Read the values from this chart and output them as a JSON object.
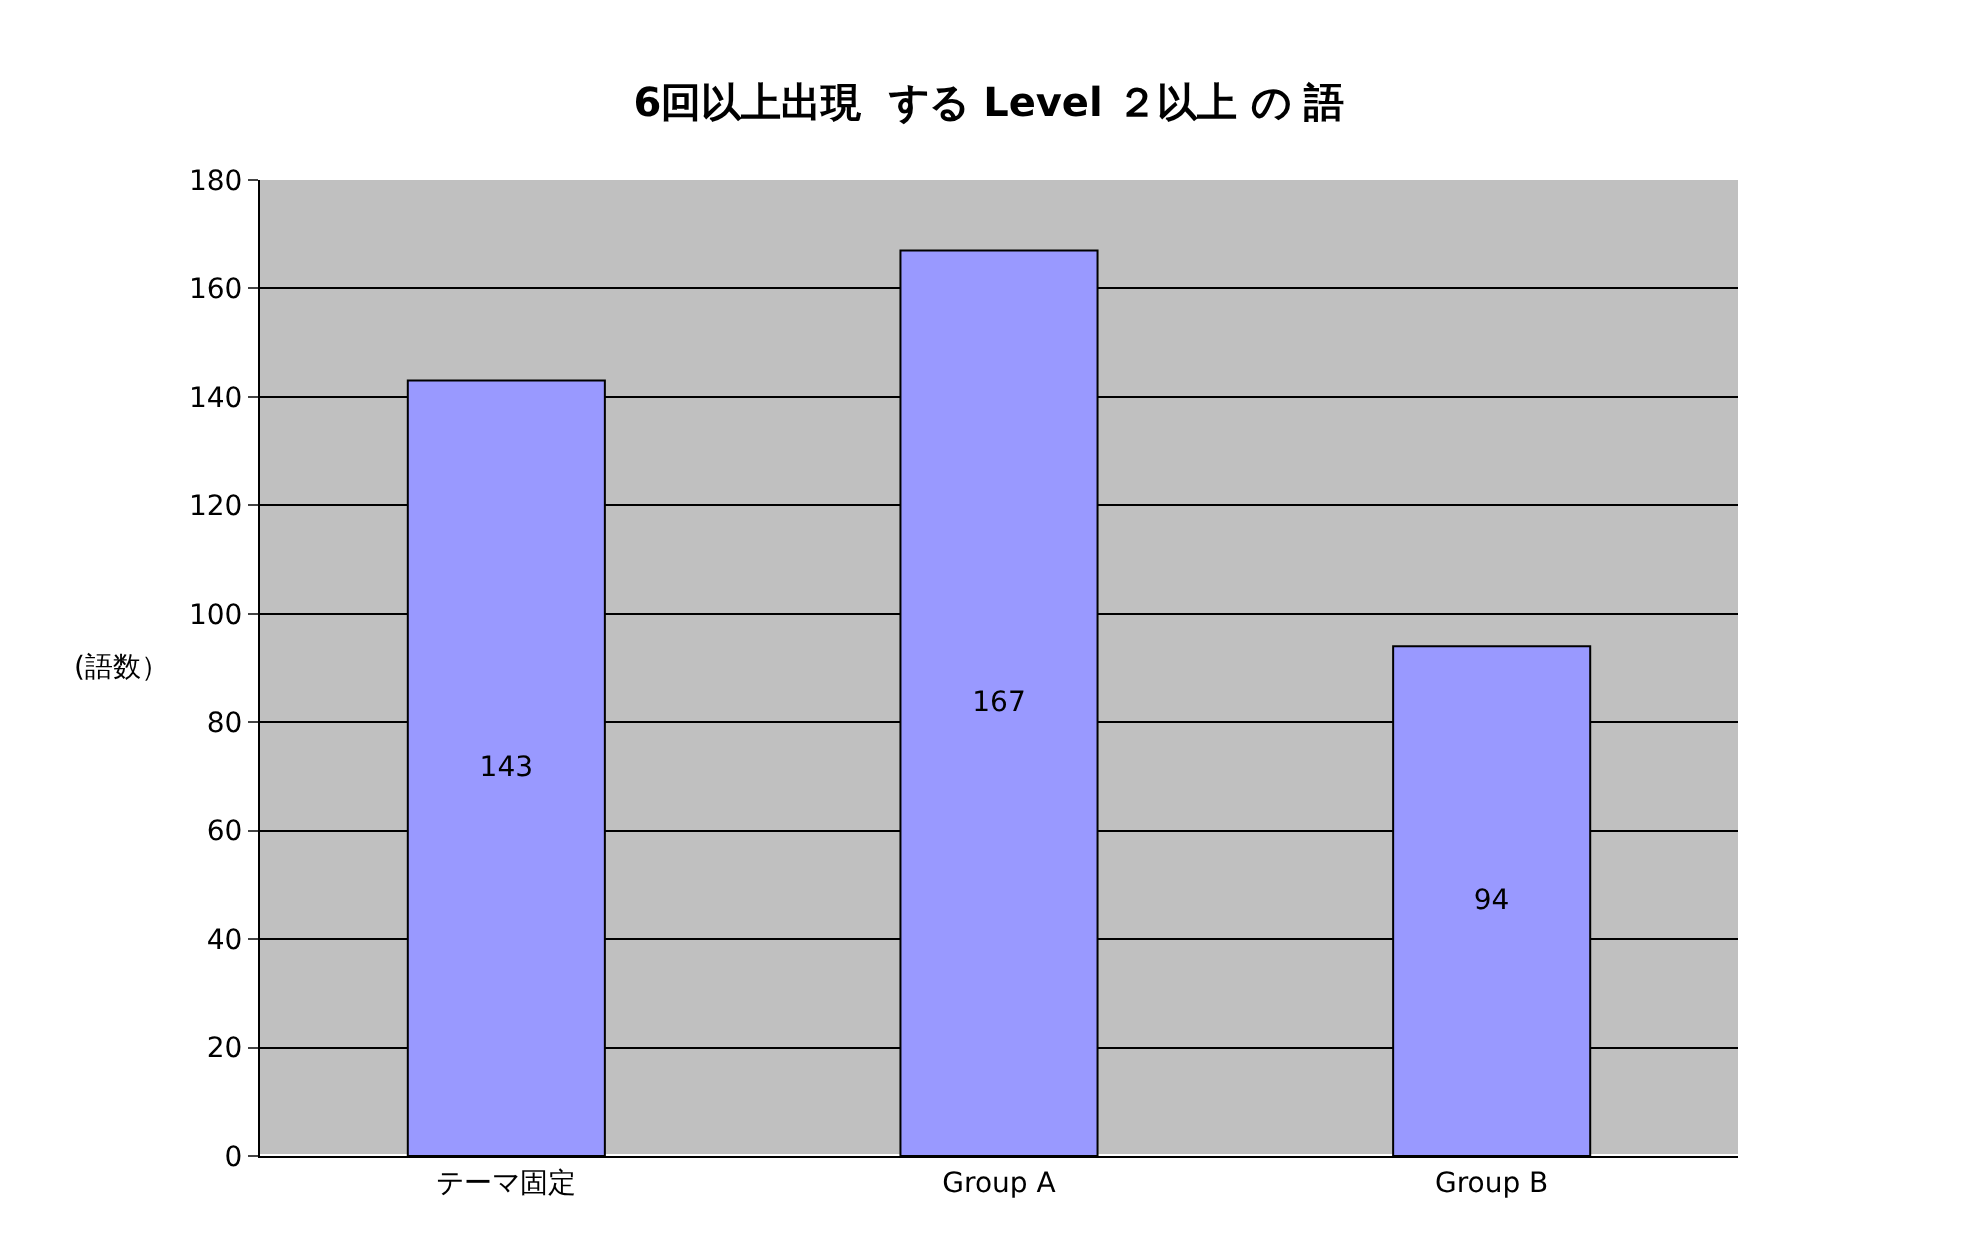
{
  "chart_data": {
    "type": "bar",
    "title": "6回以上出現  する Level ２以上 の 語",
    "ylabel": "(語数）",
    "categories": [
      "テーマ固定",
      "Group A",
      "Group B"
    ],
    "values": [
      143,
      167,
      94
    ],
    "color": "#9999ff",
    "data_labels": true,
    "ylim": [
      0,
      180
    ],
    "yticks": [
      0,
      20,
      40,
      60,
      80,
      100,
      120,
      140,
      160,
      180
    ],
    "grid": "y"
  }
}
